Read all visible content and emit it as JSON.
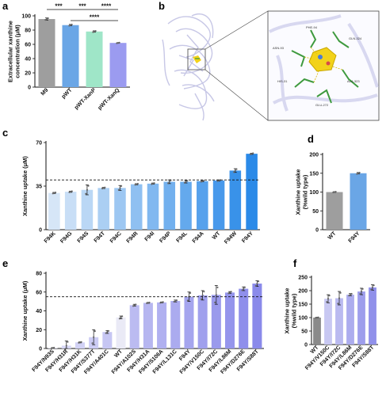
{
  "colors": {
    "gray": "#9e9e9e",
    "pwt": "#6aa6e6",
    "xanp": "#9fe6c8",
    "xanq": "#9b9bf0",
    "blue_light": "#d6e6f7",
    "blue_dark": "#2b8ae8",
    "purple_light": "#dcdcf6",
    "purple_dark": "#8a8aea",
    "f_wt": "#8a8a8a",
    "f_dark": "#9090ea"
  },
  "panels": {
    "a": "a",
    "b": "b",
    "c": "c",
    "d": "d",
    "e": "e",
    "f": "f"
  },
  "chart_data": [
    {
      "panel": "a",
      "type": "bar",
      "categories": [
        "M9",
        "pWT",
        "pWT-XanP",
        "pWT-XanQ"
      ],
      "values": [
        95.5,
        87.0,
        78.0,
        62.0
      ],
      "errors": [
        1.5,
        1.0,
        1.0,
        0.5
      ],
      "ylabel": "Extracellular xanthine\nconcentration (μM)",
      "ylim": [
        0,
        100
      ],
      "yticks": [
        0,
        20,
        40,
        60,
        80,
        100
      ],
      "significance": [
        {
          "from": 0,
          "to": 1,
          "label": "***"
        },
        {
          "from": 1,
          "to": 2,
          "label": "***"
        },
        {
          "from": 2,
          "to": 3,
          "label": "****"
        },
        {
          "from": 1,
          "to": 3,
          "label": "****"
        }
      ]
    },
    {
      "panel": "c",
      "type": "bar",
      "categories": [
        "F94K",
        "F94G",
        "F94S",
        "F94T",
        "F94C",
        "F94R",
        "F94I",
        "F94P",
        "F94L",
        "F94A",
        "WT",
        "F94W",
        "F94Y"
      ],
      "values": [
        29.5,
        30.5,
        32.0,
        33.5,
        33.5,
        36.5,
        37.0,
        38.5,
        38.5,
        39.0,
        39.5,
        47.5,
        61.0
      ],
      "errors": [
        0.5,
        0.5,
        4.0,
        0.5,
        2.0,
        0.5,
        0.5,
        1.5,
        1.0,
        0.5,
        0.5,
        1.5,
        0.5
      ],
      "ylabel": "Xanthine uptake (μM)",
      "ylim": [
        0,
        70
      ],
      "yticks": [
        0,
        35,
        70
      ],
      "reference_line": 40
    },
    {
      "panel": "d",
      "type": "bar",
      "categories": [
        "WT",
        "F94Y"
      ],
      "values": [
        100,
        150
      ],
      "errors": [
        1,
        2
      ],
      "ylabel": "Xanthine uptake\n(%wild type)",
      "ylim": [
        0,
        200
      ],
      "yticks": [
        0,
        50,
        100,
        150,
        200
      ]
    },
    {
      "panel": "e",
      "type": "bar",
      "categories": [
        "F94Y/N93S",
        "F94Y/H31R",
        "F94Y/H31K",
        "F94Y/S377T",
        "F94Y/A401C",
        "WT",
        "F94Y/A102S",
        "F94Y/H31A",
        "F94Y/S106A",
        "F94Y/L131C",
        "F94Y",
        "F94Y/V150C",
        "F94Y/I72C",
        "F94Y/L86M",
        "F94Y/D276E",
        "F94Y/S88T"
      ],
      "values": [
        0.5,
        3.0,
        6.5,
        12.0,
        17.5,
        33.0,
        46.0,
        48.5,
        49.0,
        50.5,
        55.0,
        56.5,
        57.0,
        59.5,
        63.5,
        69.0
      ],
      "errors": [
        0.5,
        5.0,
        0.5,
        8.0,
        1.5,
        1.5,
        1.0,
        0.5,
        0.5,
        1.0,
        5.0,
        5.0,
        10.0,
        1.0,
        2.0,
        3.0
      ],
      "ylabel": "Xanthine uptake (μM)",
      "ylim": [
        0,
        80
      ],
      "yticks": [
        0,
        20,
        40,
        60,
        80
      ],
      "reference_line": 55
    },
    {
      "panel": "f",
      "type": "bar",
      "categories": [
        "WT",
        "F94Y/V150C",
        "F94Y/I72C",
        "F94Y/L86M",
        "F94Y/D276E",
        "F94Y/S88T"
      ],
      "values": [
        100,
        170,
        172,
        185,
        197,
        212
      ],
      "errors": [
        1,
        15,
        25,
        4,
        12,
        10
      ],
      "ylabel": "Xanthine uptake\n(%wild type)",
      "ylim": [
        0,
        250
      ],
      "yticks": [
        0,
        50,
        100,
        150,
        200,
        250
      ]
    }
  ],
  "structure": {
    "residues": [
      "PHE-94",
      "GLN-324",
      "ASN-93",
      "ALA-323",
      "HIS-31",
      "GLU-272"
    ]
  }
}
